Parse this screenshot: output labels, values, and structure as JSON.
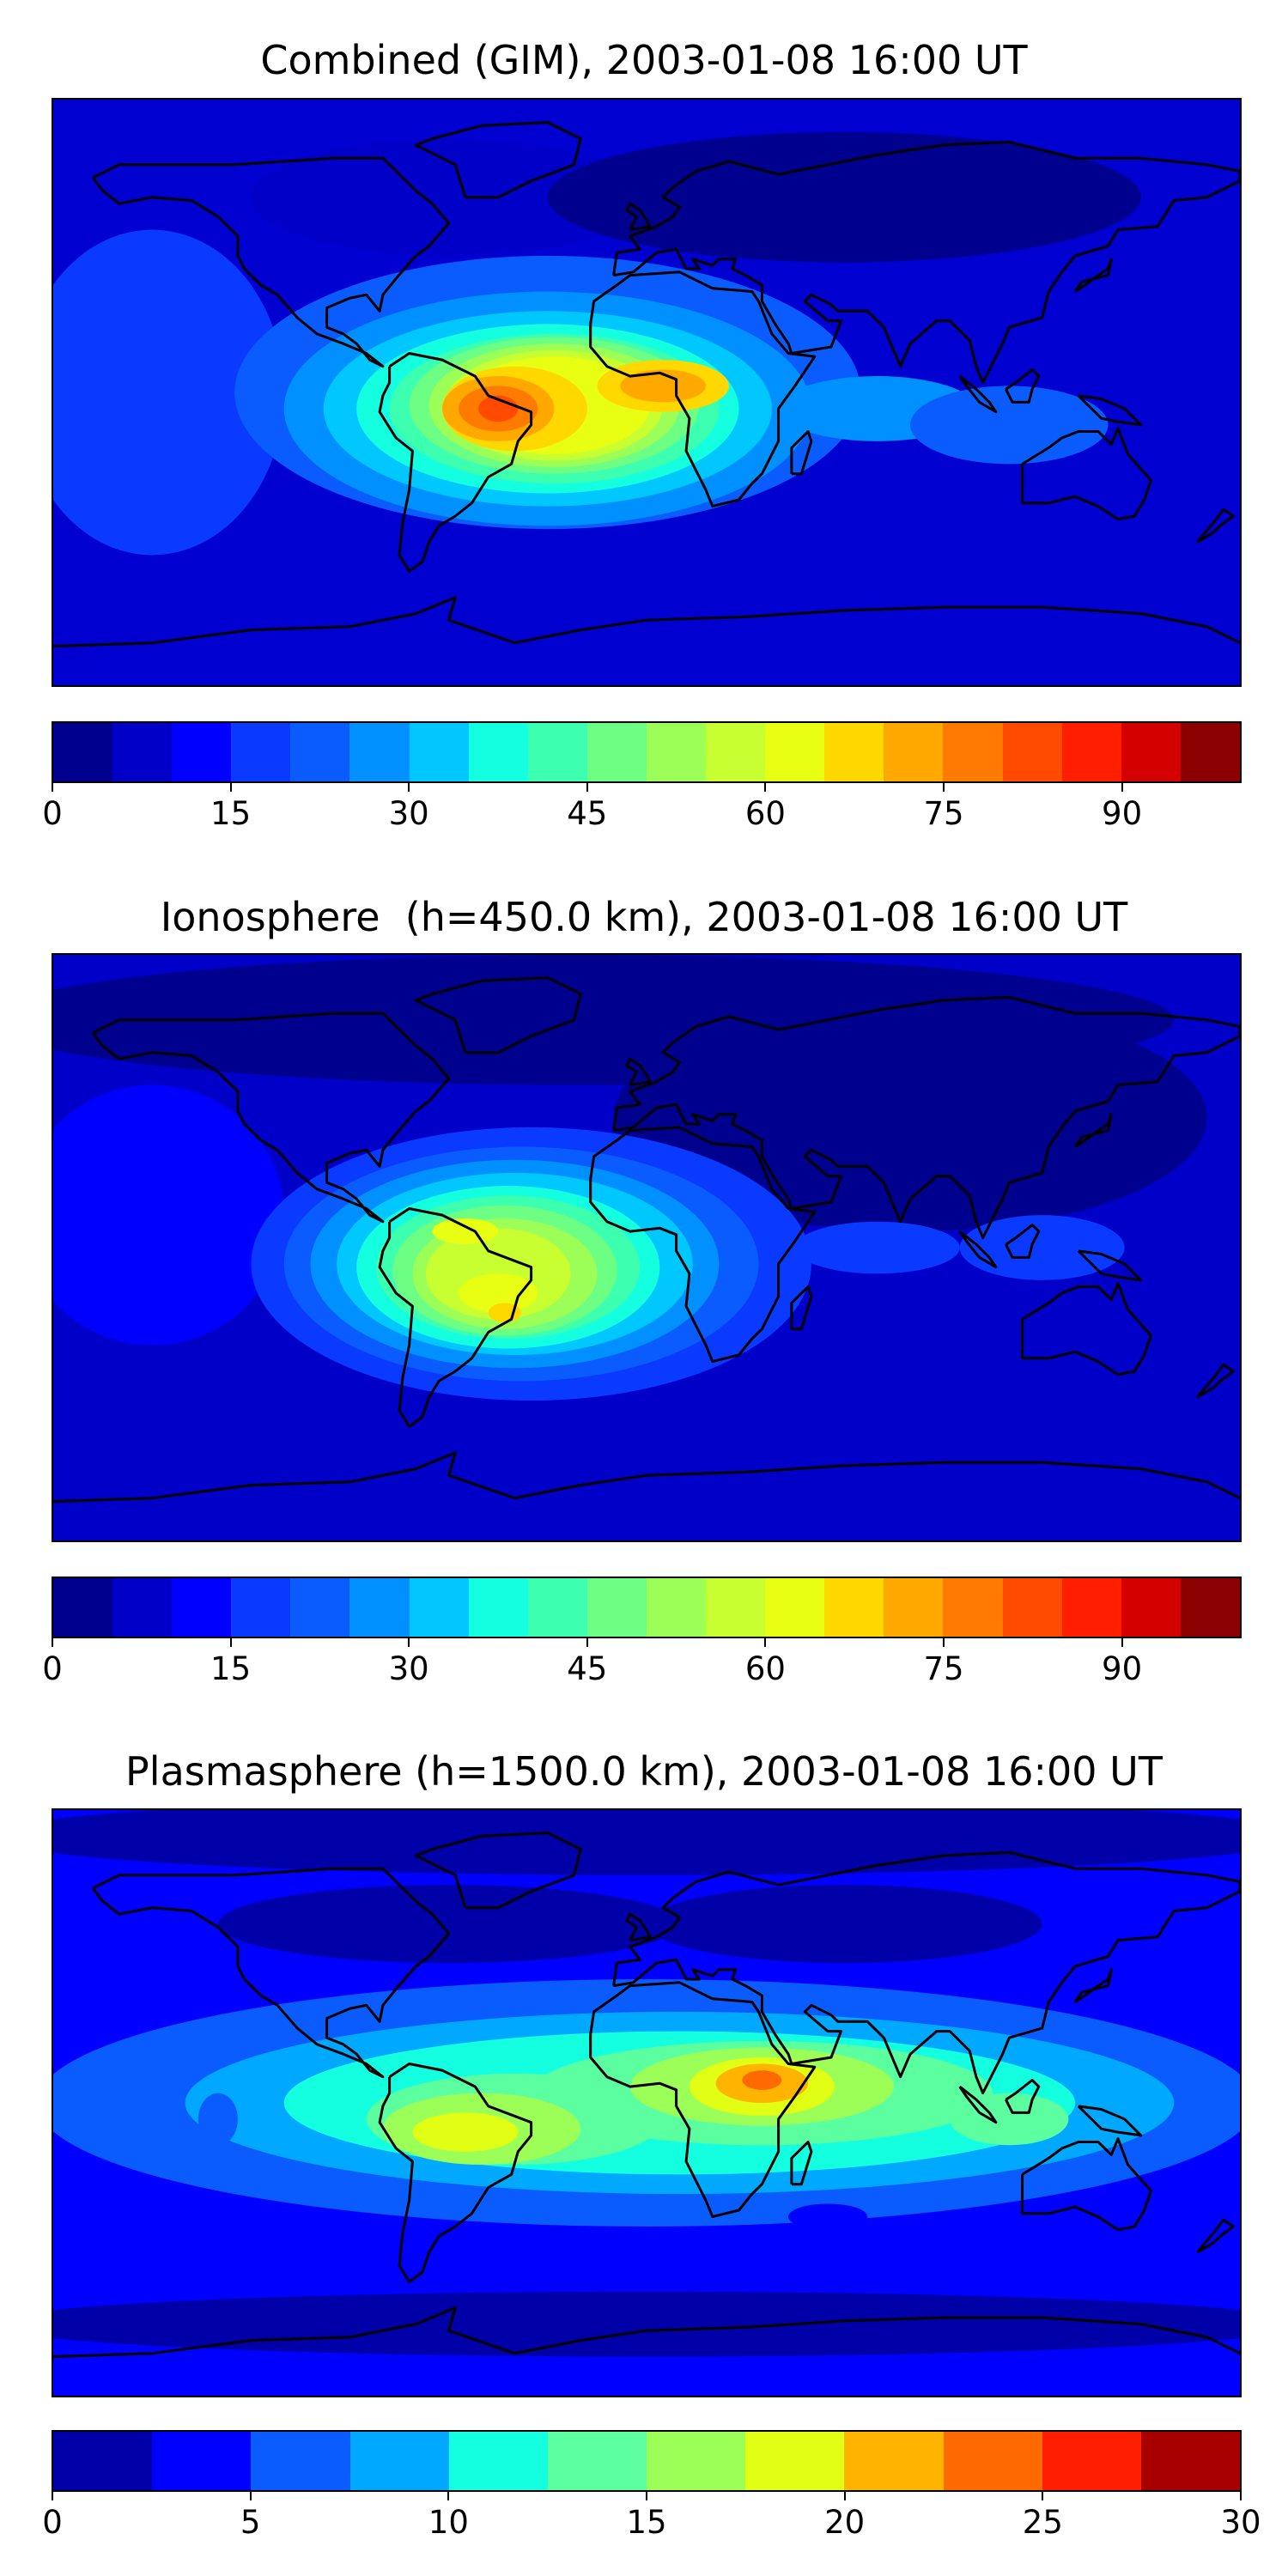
{
  "chart_data": [
    {
      "type": "heatmap",
      "title": "Combined (GIM), 2003-01-08 16:00 UT",
      "colorbar": {
        "min": 0,
        "max": 100,
        "step": 5,
        "ticks": [
          0,
          15,
          30,
          45,
          60,
          75,
          90
        ],
        "tick_labels": [
          "0",
          "15",
          "30",
          "45",
          "60",
          "75",
          "90"
        ],
        "colors": [
          "#00008f",
          "#0000c8",
          "#0000ff",
          "#0a3aff",
          "#0a5cff",
          "#0090ff",
          "#00c8ff",
          "#14ffe0",
          "#3cffb0",
          "#6cff84",
          "#9cff58",
          "#c8ff30",
          "#e8ff14",
          "#ffd800",
          "#ffa800",
          "#ff7a00",
          "#ff4a00",
          "#ff1e00",
          "#d40000",
          "#8b0000"
        ]
      },
      "features": [
        {
          "label": "equatorial maximum (orange/red) over South America and tropical Atlantic",
          "lon": -45,
          "lat": -10,
          "value": 75
        },
        {
          "label": "secondary maximum over west-central Africa",
          "lon": 15,
          "lat": 0,
          "value": 70
        },
        {
          "label": "broad crest across Atlantic",
          "lon": -25,
          "lat": -5,
          "value": 65
        }
      ]
    },
    {
      "type": "heatmap",
      "title": "Ionosphere  (h=450.0 km), 2003-01-08 16:00 UT",
      "colorbar": {
        "min": 0,
        "max": 100,
        "step": 5,
        "ticks": [
          0,
          15,
          30,
          45,
          60,
          75,
          90
        ],
        "tick_labels": [
          "0",
          "15",
          "30",
          "45",
          "60",
          "75",
          "90"
        ],
        "colors": [
          "#00008f",
          "#0000c8",
          "#0000ff",
          "#0a3aff",
          "#0a5cff",
          "#0090ff",
          "#00c8ff",
          "#14ffe0",
          "#3cffb0",
          "#6cff84",
          "#9cff58",
          "#c8ff30",
          "#e8ff14",
          "#ffd800",
          "#ffa800",
          "#ff7a00",
          "#ff4a00",
          "#ff1e00",
          "#d40000",
          "#8b0000"
        ]
      },
      "features": [
        {
          "label": "maximum over eastern South America",
          "lon": -45,
          "lat": -20,
          "value": 70
        },
        {
          "label": "secondary maximum over northern South America",
          "lon": -55,
          "lat": -5,
          "value": 65
        },
        {
          "label": "broad crest across Atlantic",
          "lon": -25,
          "lat": -10,
          "value": 55
        }
      ]
    },
    {
      "type": "heatmap",
      "title": "Plasmasphere (h=1500.0 km), 2003-01-08 16:00 UT",
      "colorbar": {
        "min": 0,
        "max": 30,
        "step": 2.5,
        "ticks": [
          0,
          5,
          10,
          15,
          20,
          25,
          30
        ],
        "tick_labels": [
          "0",
          "5",
          "10",
          "15",
          "20",
          "25",
          "30"
        ],
        "colors": [
          "#0000a8",
          "#0000ff",
          "#0a5cff",
          "#00a8ff",
          "#14ffe0",
          "#5cffa0",
          "#9cff58",
          "#e0ff14",
          "#ffb400",
          "#ff6a00",
          "#ff1e00",
          "#a80000"
        ]
      },
      "features": [
        {
          "label": "maximum over East Africa",
          "lon": 35,
          "lat": 5,
          "value": 22
        },
        {
          "label": "secondary maximum over South America",
          "lon": -55,
          "lat": -10,
          "value": 18
        },
        {
          "label": "band across Africa and Indian Ocean",
          "lon": 75,
          "lat": 0,
          "value": 15
        }
      ]
    }
  ]
}
